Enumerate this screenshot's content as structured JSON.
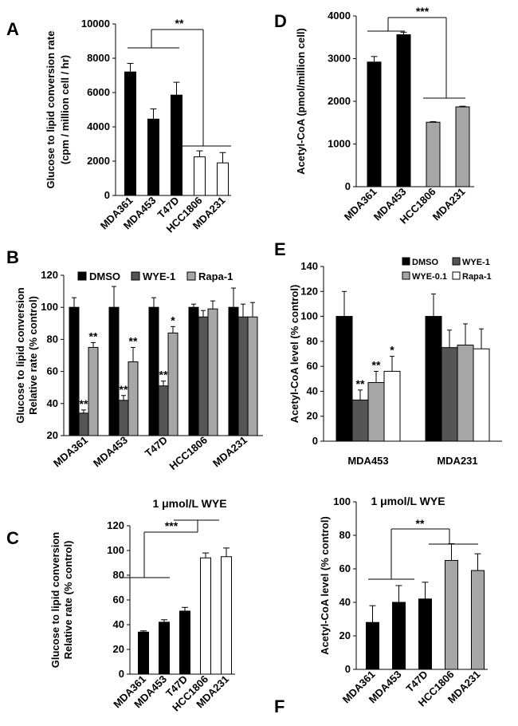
{
  "colors": {
    "black": "#000000",
    "dark_gray": "#555555",
    "gray": "#a6a6a6",
    "white": "#ffffff"
  },
  "chart_data": [
    {
      "id": "A",
      "type": "bar",
      "panel_label": "A",
      "ylabel": [
        "Glucose to lipid conversion rate",
        "(cpm / million cell / hr)"
      ],
      "categories": [
        "MDA361",
        "MDA453",
        "T47D",
        "HCC1806",
        "MDA231"
      ],
      "values": [
        7200,
        4450,
        5850,
        2250,
        1900
      ],
      "errors": [
        500,
        600,
        750,
        350,
        600
      ],
      "bar_colors": [
        "black",
        "black",
        "black",
        "white",
        "white"
      ],
      "yticks": [
        0,
        2000,
        4000,
        6000,
        8000,
        10000
      ],
      "ylim": [
        0,
        10000
      ],
      "significance": "**"
    },
    {
      "id": "D",
      "type": "bar",
      "panel_label": "D",
      "ylabel": [
        "Acetyl-CoA (pmol/million cell)"
      ],
      "categories": [
        "MDA361",
        "MDA453",
        "HCC1806",
        "MDA231"
      ],
      "values": [
        2920,
        3560,
        1510,
        1870
      ],
      "errors": [
        130,
        60,
        15,
        15
      ],
      "bar_colors": [
        "black",
        "black",
        "gray",
        "gray"
      ],
      "yticks": [
        0,
        1000,
        2000,
        3000,
        4000
      ],
      "ylim": [
        0,
        4000
      ],
      "significance": "***"
    },
    {
      "id": "B",
      "type": "bar",
      "panel_label": "B",
      "ylabel": [
        "Glucose to lipid conversion",
        "Relative rate (% control)"
      ],
      "categories": [
        "MDA361",
        "MDA453",
        "T47D",
        "HCC1806",
        "MDA231"
      ],
      "series": [
        {
          "name": "DMSO",
          "color": "black",
          "values": [
            100,
            100,
            100,
            100,
            100
          ],
          "errors": [
            6,
            13,
            6,
            2,
            12
          ],
          "stars": [
            "",
            "",
            "",
            "",
            ""
          ]
        },
        {
          "name": "WYE-1",
          "color": "dark_gray",
          "values": [
            34,
            42,
            51,
            94,
            94
          ],
          "errors": [
            2,
            3,
            3,
            4,
            8
          ],
          "stars": [
            "**",
            "**",
            "**",
            "",
            ""
          ]
        },
        {
          "name": "Rapa-1",
          "color": "gray",
          "values": [
            75,
            66,
            84,
            99,
            94
          ],
          "errors": [
            3,
            9,
            4,
            5,
            9
          ],
          "stars": [
            "**",
            "**",
            "*",
            "",
            ""
          ]
        }
      ],
      "yticks": [
        20,
        40,
        60,
        80,
        100,
        120
      ],
      "ylim": [
        20,
        120
      ]
    },
    {
      "id": "E",
      "type": "bar",
      "panel_label": "E",
      "ylabel": [
        "Acetyl-CoA level (% control)"
      ],
      "categories": [
        "MDA453",
        "MDA231"
      ],
      "series": [
        {
          "name": "DMSO",
          "color": "black",
          "values": [
            100,
            100
          ],
          "errors": [
            20,
            18
          ],
          "stars": [
            "",
            ""
          ]
        },
        {
          "name": "WYE-1",
          "color": "dark_gray",
          "values": [
            33,
            75
          ],
          "errors": [
            8,
            14
          ],
          "stars": [
            "**",
            ""
          ]
        },
        {
          "name": "WYE-0.1",
          "color": "gray",
          "values": [
            47,
            77
          ],
          "errors": [
            9,
            17
          ],
          "stars": [
            "**",
            ""
          ]
        },
        {
          "name": "Rapa-1",
          "color": "white",
          "values": [
            56,
            74
          ],
          "errors": [
            12,
            16
          ],
          "stars": [
            "*",
            ""
          ]
        }
      ],
      "yticks": [
        0,
        20,
        40,
        60,
        80,
        100,
        120,
        140
      ],
      "ylim": [
        0,
        140
      ]
    },
    {
      "id": "C",
      "type": "bar",
      "panel_label": "C",
      "title": "1 μmol/L WYE",
      "ylabel": [
        "Glucose to lipid conversion",
        "Relative rate (% control)"
      ],
      "categories": [
        "MDA361",
        "MDA453",
        "T47D",
        "HCC1806",
        "MDA231"
      ],
      "values": [
        34,
        42,
        51,
        94,
        95
      ],
      "errors": [
        1,
        2,
        3,
        4,
        7
      ],
      "bar_colors": [
        "black",
        "black",
        "black",
        "white",
        "white"
      ],
      "yticks": [
        0,
        20,
        40,
        60,
        80,
        100,
        120
      ],
      "ylim": [
        0,
        120
      ],
      "significance": "***"
    },
    {
      "id": "F",
      "type": "bar",
      "panel_label": "F",
      "title": "1 μmol/L WYE",
      "ylabel": [
        "Acetyl-CoA level (% control)"
      ],
      "categories": [
        "MDA361",
        "MDA453",
        "T47D",
        "HCC1806",
        "MDA231"
      ],
      "values": [
        28,
        40,
        42,
        65,
        59
      ],
      "errors": [
        10,
        10,
        10,
        10,
        10
      ],
      "bar_colors": [
        "black",
        "black",
        "black",
        "gray",
        "gray"
      ],
      "yticks": [
        0,
        20,
        40,
        60,
        80,
        100
      ],
      "ylim": [
        0,
        100
      ],
      "significance": "**"
    }
  ]
}
